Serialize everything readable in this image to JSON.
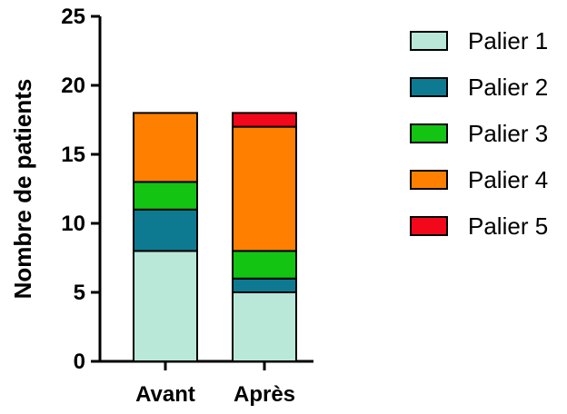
{
  "chart_data": {
    "type": "bar",
    "stacked": true,
    "categories": [
      "Avant",
      "Après"
    ],
    "series": [
      {
        "name": "Palier 1",
        "color": "#b9e8d8",
        "values": [
          8,
          5
        ]
      },
      {
        "name": "Palier 2",
        "color": "#0e7a92",
        "values": [
          3,
          1
        ]
      },
      {
        "name": "Palier 3",
        "color": "#13c413",
        "values": [
          2,
          2
        ]
      },
      {
        "name": "Palier 4",
        "color": "#ff8000",
        "values": [
          5,
          9
        ]
      },
      {
        "name": "Palier 5",
        "color": "#f2071b",
        "values": [
          0,
          1
        ]
      }
    ],
    "ylabel": "Nombre de patients",
    "ylim": [
      0,
      25
    ],
    "yticks": [
      0,
      5,
      10,
      15,
      20,
      25
    ],
    "grid": false,
    "legend": "right"
  }
}
